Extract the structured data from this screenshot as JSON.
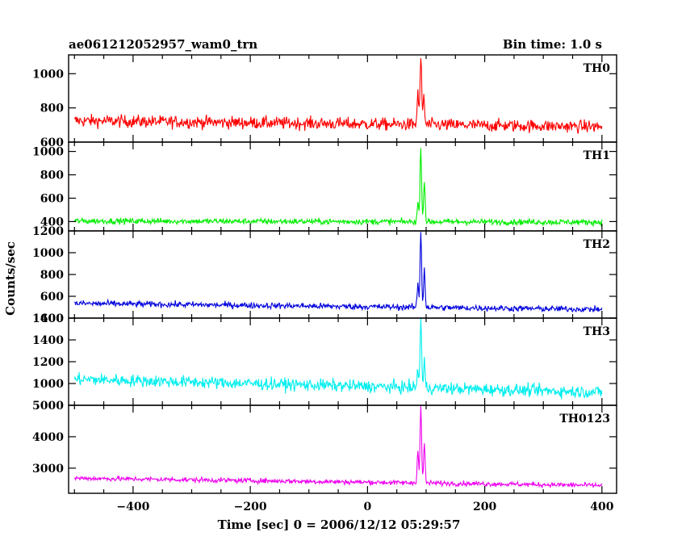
{
  "header": {
    "title_left": "ae061212052957_wam0_trn",
    "title_right": "Bin time: 1.0 s"
  },
  "chart_data": {
    "type": "line",
    "xlabel": "Time [sec] 0 = 2006/12/12 05:29:57",
    "ylabel": "Counts/sec",
    "xlim": [
      -510,
      425
    ],
    "x_ticks": [
      -400,
      -200,
      0,
      200,
      400
    ],
    "x_tick_labels": [
      "−400",
      "−200",
      "0",
      "200",
      "400"
    ],
    "x_range": [
      -500,
      400
    ],
    "bin_time": 1.0,
    "panels": [
      {
        "name": "TH0",
        "color": "#ff0000",
        "ylim": [
          600,
          1110
        ],
        "y_ticks": [
          600,
          800,
          1000
        ],
        "y_tick_labels": [
          "600",
          "800",
          "1000"
        ],
        "baseline_start": 725,
        "baseline_end": 690,
        "noise": 26,
        "burst_peaks": [
          {
            "x": 86,
            "y": 900
          },
          {
            "x": 91,
            "y": 1110
          },
          {
            "x": 96,
            "y": 880
          }
        ]
      },
      {
        "name": "TH1",
        "color": "#00ee00",
        "ylim": [
          320,
          1080
        ],
        "y_ticks": [
          400,
          600,
          800,
          1000
        ],
        "y_tick_labels": [
          "400",
          "600",
          "800",
          "1000"
        ],
        "baseline_start": 405,
        "baseline_end": 395,
        "noise": 18,
        "burst_peaks": [
          {
            "x": 86,
            "y": 560
          },
          {
            "x": 91,
            "y": 1050
          },
          {
            "x": 97,
            "y": 760
          }
        ]
      },
      {
        "name": "TH2",
        "color": "#0000dd",
        "ylim": [
          400,
          1200
        ],
        "y_ticks": [
          400,
          600,
          800,
          1000,
          1200
        ],
        "y_tick_labels": [
          "400",
          "600",
          "800",
          "1000",
          "1200"
        ],
        "baseline_start": 535,
        "baseline_end": 480,
        "noise": 20,
        "burst_peaks": [
          {
            "x": 86,
            "y": 720
          },
          {
            "x": 91,
            "y": 1200
          },
          {
            "x": 97,
            "y": 860
          }
        ]
      },
      {
        "name": "TH3",
        "color": "#00eeee",
        "ylim": [
          800,
          1600
        ],
        "y_ticks": [
          1000,
          1200,
          1400,
          1600
        ],
        "y_tick_labels": [
          "1000",
          "1200",
          "1400",
          "1600"
        ],
        "baseline_start": 1040,
        "baseline_end": 920,
        "noise": 40,
        "burst_peaks": [
          {
            "x": 86,
            "y": 1140
          },
          {
            "x": 91,
            "y": 1600
          },
          {
            "x": 97,
            "y": 1200
          }
        ]
      },
      {
        "name": "TH0123",
        "color": "#ee00ee",
        "ylim": [
          2200,
          5000
        ],
        "y_ticks": [
          3000,
          4000,
          5000
        ],
        "y_tick_labels": [
          "3000",
          "4000",
          "5000"
        ],
        "baseline_start": 2680,
        "baseline_end": 2450,
        "noise": 55,
        "burst_peaks": [
          {
            "x": 86,
            "y": 3600
          },
          {
            "x": 91,
            "y": 5000
          },
          {
            "x": 97,
            "y": 3800
          }
        ]
      }
    ]
  }
}
